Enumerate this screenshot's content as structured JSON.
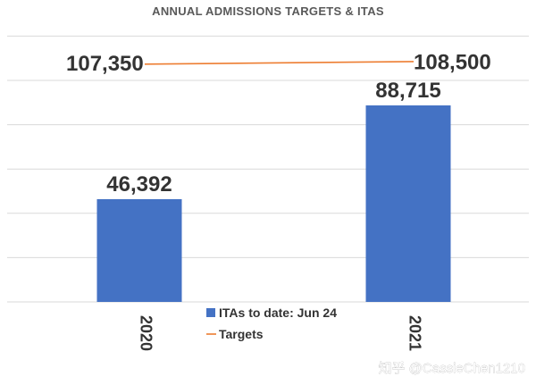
{
  "chart_data": {
    "type": "bar",
    "title": "ANNUAL ADMISSIONS TARGETS & ITAS",
    "categories": [
      "2020",
      "2021"
    ],
    "series": [
      {
        "name": "ITAs to date: Jun 24",
        "type": "bar",
        "color": "#4472c4",
        "values": [
          46392,
          88715
        ],
        "labels": [
          "46,392",
          "88,715"
        ]
      },
      {
        "name": "Targets",
        "type": "line",
        "color": "#ed7d31",
        "values": [
          107350,
          108500
        ],
        "labels": [
          "107,350",
          "108,500"
        ]
      }
    ],
    "ylim": [
      0,
      125000
    ],
    "xlabel": "",
    "ylabel": "",
    "grid": true,
    "legend": "bottom-center"
  },
  "watermark": "知乎 @CassieChen1210"
}
